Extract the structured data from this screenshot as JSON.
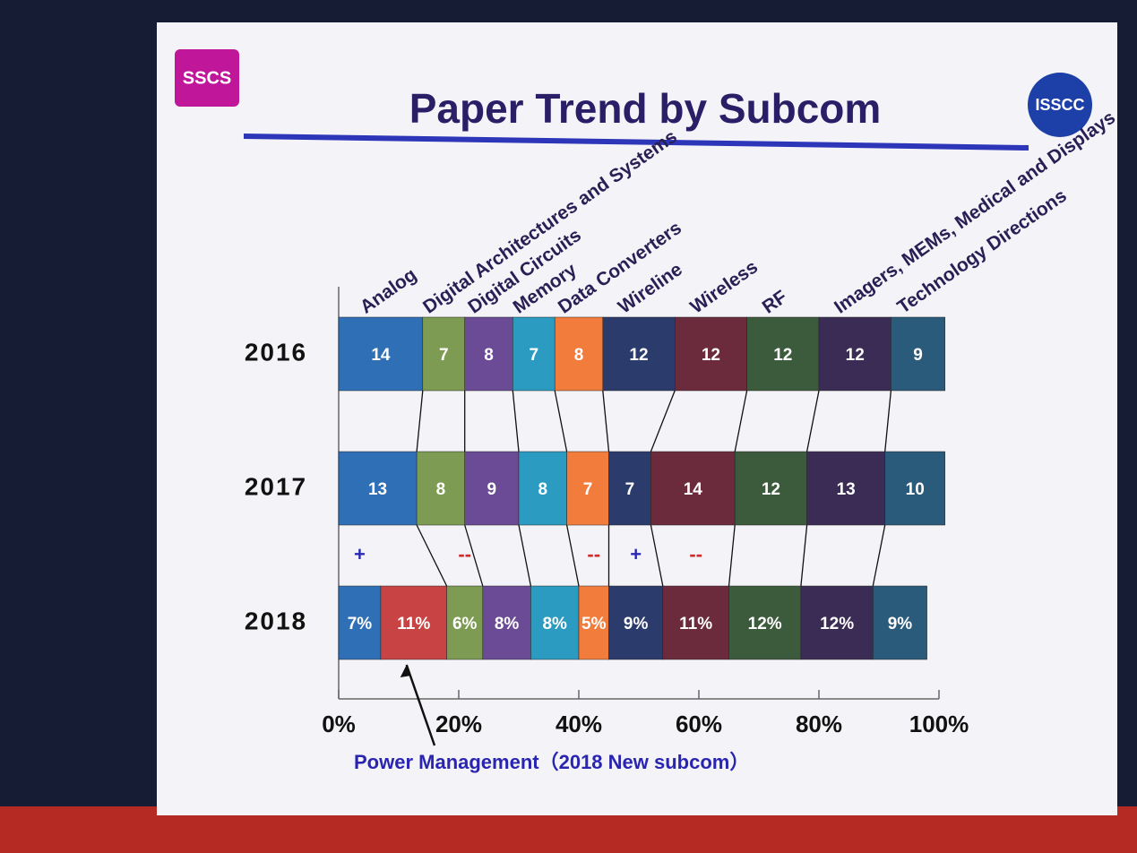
{
  "chart_data": {
    "type": "stacked-bar",
    "title": "Paper Trend by Subcom",
    "logos": [
      "SSCS",
      "ISSCC"
    ],
    "categories": [
      "2016",
      "2017",
      "2018"
    ],
    "xlim": [
      0,
      100
    ],
    "xticks": [
      {
        "value": 0,
        "label": "0%"
      },
      {
        "value": 20,
        "label": "20%"
      },
      {
        "value": 40,
        "label": "40%"
      },
      {
        "value": 60,
        "label": "60%"
      },
      {
        "value": 80,
        "label": "80%"
      },
      {
        "value": 100,
        "label": "100%"
      }
    ],
    "series": [
      {
        "name": "Analog",
        "color": "#2f6fb5",
        "values": [
          14,
          13,
          7
        ],
        "value_labels": [
          null,
          null,
          "7%"
        ],
        "change": "+"
      },
      {
        "color": "#c84444",
        "values": [
          null,
          null,
          11
        ],
        "value_labels": [
          null,
          null,
          "11%"
        ],
        "note": "Power Management（2018 New subcom）"
      },
      {
        "name": "Digital Architectures and Systems",
        "color": "#7d9b52",
        "values": [
          7,
          8,
          6
        ],
        "value_labels": [
          null,
          null,
          "6%"
        ],
        "change": "--"
      },
      {
        "name": "Digital Circuits",
        "color": "#6b4b96",
        "values": [
          8,
          9,
          8
        ],
        "value_labels": [
          null,
          null,
          "8%"
        ]
      },
      {
        "name": "Memory",
        "color": "#2b9bc2",
        "values": [
          7,
          8,
          8
        ],
        "value_labels": [
          null,
          null,
          "8%"
        ]
      },
      {
        "name": "Data Converters",
        "color": "#f27c3c",
        "values": [
          8,
          7,
          5
        ],
        "value_labels": [
          null,
          null,
          "5%"
        ],
        "change": "--"
      },
      {
        "name": "Wireline",
        "color": "#2b3b6c",
        "values": [
          12,
          7,
          9
        ],
        "value_labels": [
          null,
          null,
          "9%"
        ],
        "change": "+"
      },
      {
        "name": "Wireless",
        "color": "#6b2b3c",
        "values": [
          12,
          14,
          11
        ],
        "value_labels": [
          null,
          null,
          "11%"
        ],
        "change": "--"
      },
      {
        "name": "RF",
        "color": "#3c5a3c",
        "values": [
          12,
          12,
          12
        ],
        "value_labels": [
          null,
          null,
          "12%"
        ]
      },
      {
        "name": "Imagers, MEMs, Medical and Displays",
        "color": "#3b2c56",
        "values": [
          12,
          13,
          12
        ],
        "value_labels": [
          null,
          null,
          "12%"
        ]
      },
      {
        "name": "Technology Directions",
        "color": "#2b5b7b",
        "values": [
          9,
          10,
          9
        ],
        "value_labels": [
          null,
          null,
          "9%"
        ]
      }
    ]
  }
}
